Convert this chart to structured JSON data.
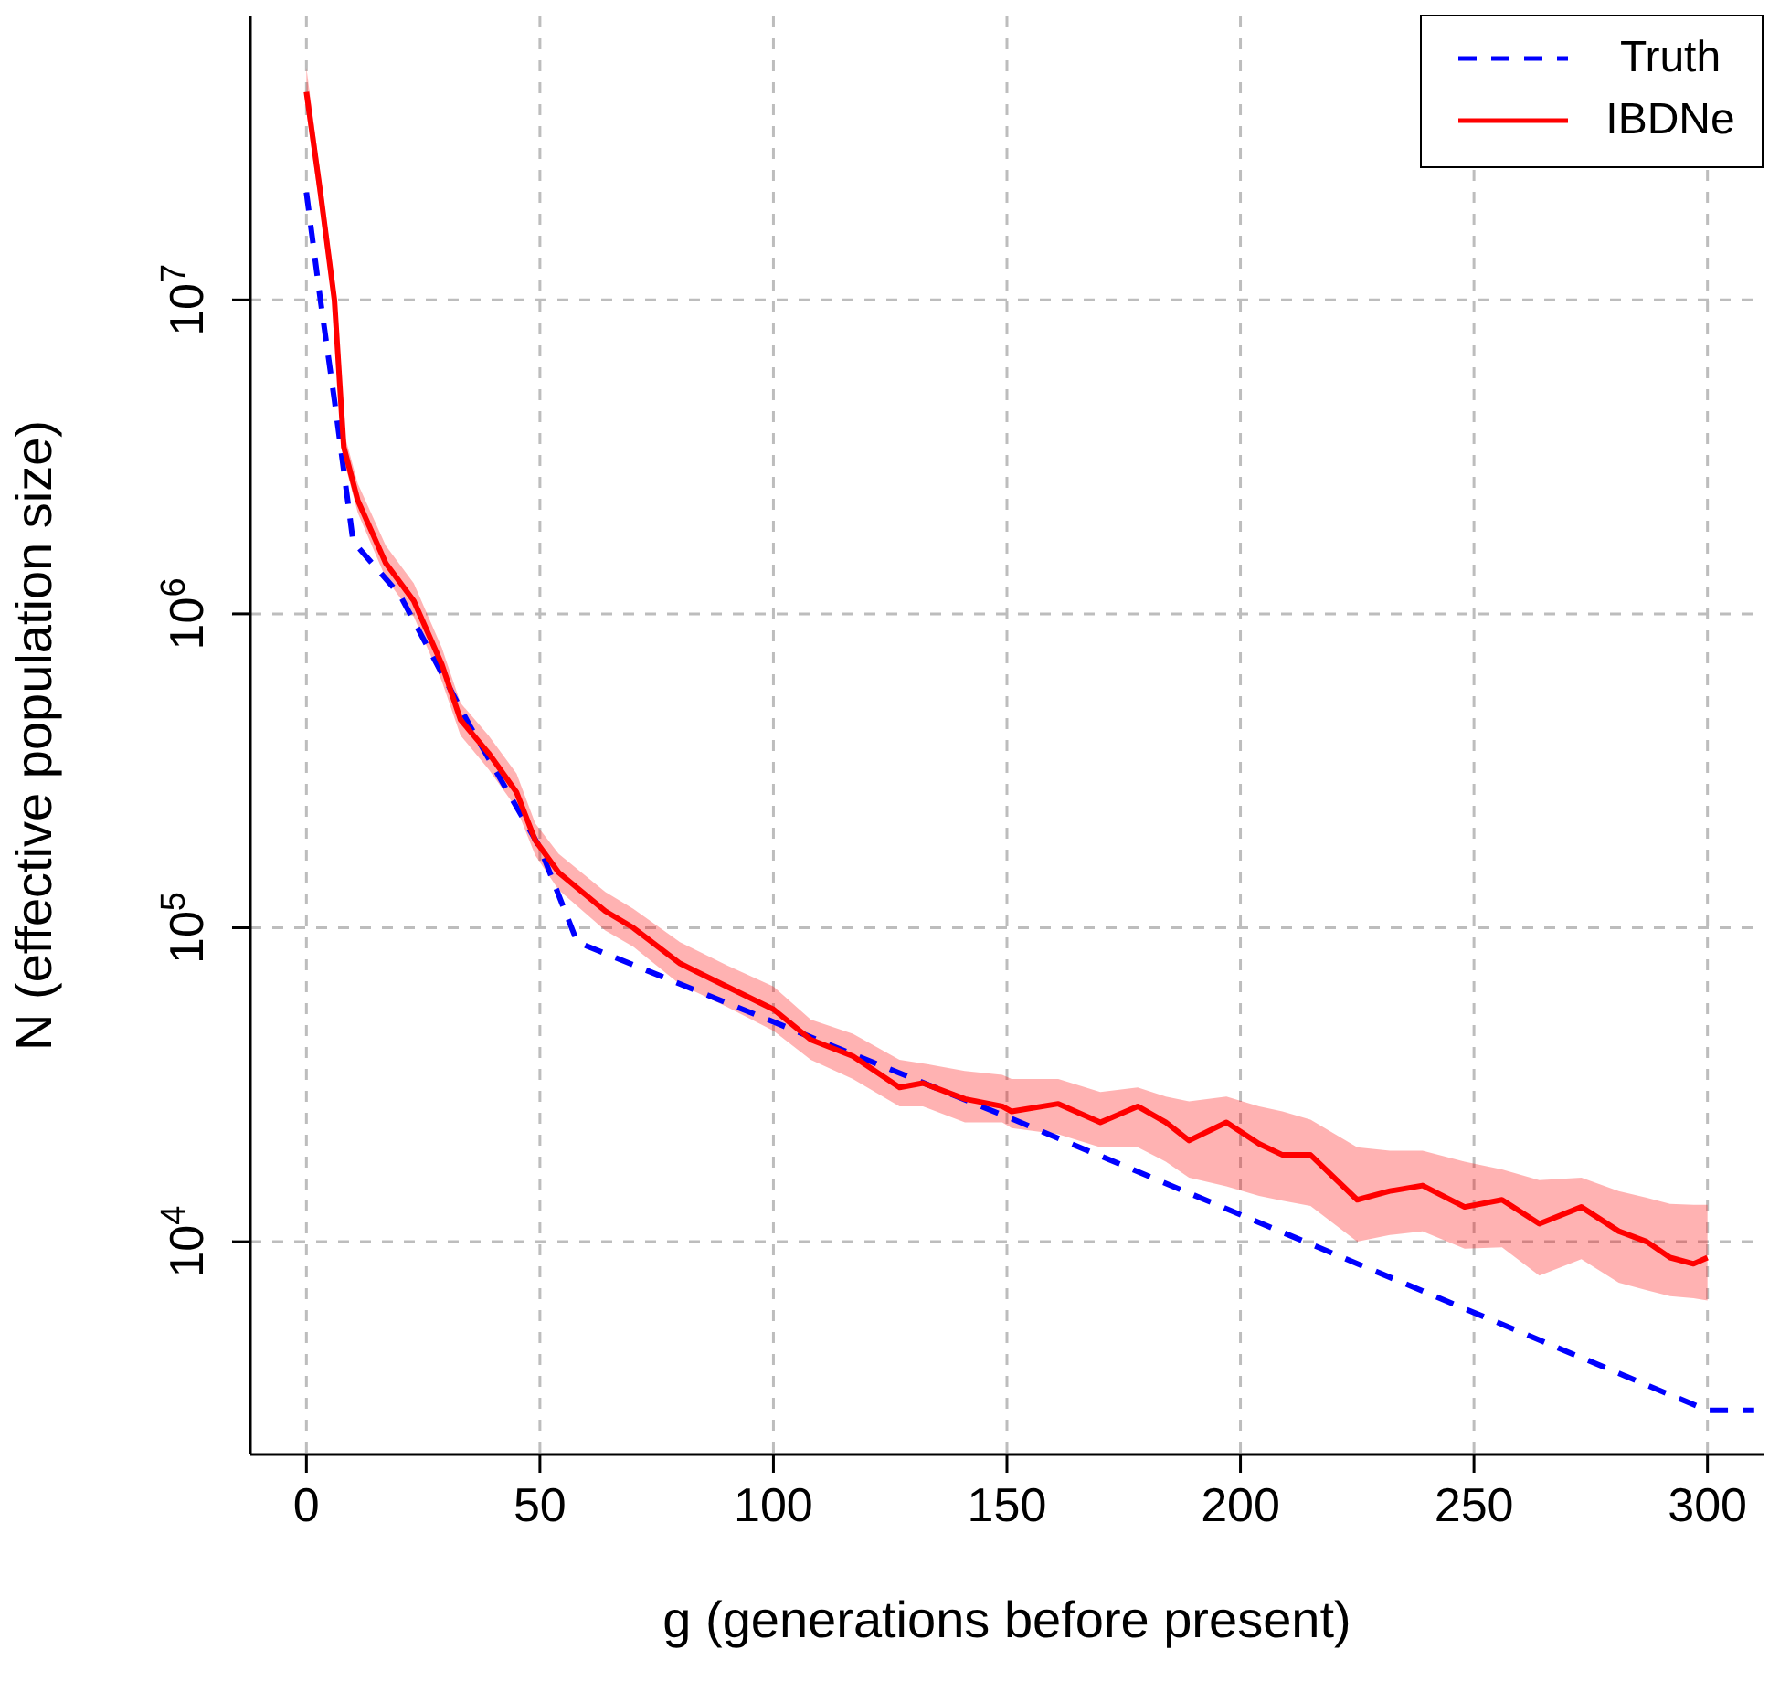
{
  "chart_data": {
    "type": "line",
    "xlabel": "g (generations before present)",
    "ylabel": "N (effective population size)",
    "xlim": [
      -12,
      312
    ],
    "xticks": [
      0,
      50,
      100,
      150,
      200,
      250,
      300
    ],
    "ylim": [
      2100,
      80000000
    ],
    "yticks": [
      {
        "value": 10000,
        "label": "10$^{4}$"
      },
      {
        "value": 100000,
        "label": "10$^{5}$"
      },
      {
        "value": 1000000,
        "label": "10$^{6}$"
      },
      {
        "value": 10000000,
        "label": "10$^{7}$"
      }
    ],
    "log": "y",
    "grid": true,
    "legend": "top right",
    "series": [
      {
        "name": "Truth",
        "color": "#0000ff",
        "line_style": "dashed",
        "x": [
          0,
          3,
          6,
          10,
          20,
          35,
          50,
          58,
          150,
          300,
          310
        ],
        "values": [
          22000000,
          10000000,
          4800000,
          1700000,
          1150000,
          440000,
          180000,
          90000,
          25000,
          2900,
          2900
        ]
      },
      {
        "name": "IBDNe",
        "color": "#ff0000",
        "line_style": "solid",
        "x": [
          0,
          3,
          6,
          8,
          11,
          17,
          23,
          29,
          33,
          39,
          45,
          49,
          54,
          64,
          70,
          80,
          90,
          100,
          108,
          117,
          127,
          132,
          141,
          149,
          151,
          161,
          170,
          178,
          184,
          189,
          197,
          204,
          209,
          215,
          225,
          232,
          239,
          248,
          256,
          264,
          273,
          281,
          287,
          292,
          297,
          300
        ],
        "values": [
          46000000,
          22000000,
          10000000,
          3400000,
          2300000,
          1450000,
          1100000,
          690000,
          460000,
          360000,
          270000,
          190000,
          150000,
          113000,
          100000,
          77000,
          65000,
          55000,
          44000,
          39000,
          31000,
          32000,
          28500,
          27000,
          26000,
          27500,
          24000,
          27000,
          24000,
          21000,
          24000,
          20500,
          18900,
          18900,
          13600,
          14500,
          15100,
          12900,
          13600,
          11400,
          12900,
          10800,
          10000,
          8900,
          8500,
          8900
        ],
        "lower": [
          40000000,
          19000000,
          9000000,
          3100000,
          2100000,
          1300000,
          980000,
          610000,
          410000,
          320000,
          240000,
          170000,
          132000,
          98000,
          87000,
          66000,
          56000,
          47000,
          38000,
          33000,
          27000,
          27000,
          24000,
          24000,
          23000,
          22000,
          20000,
          20000,
          18000,
          16000,
          15000,
          14000,
          13500,
          13000,
          10000,
          10500,
          10800,
          9500,
          9600,
          7800,
          8800,
          7400,
          7000,
          6700,
          6600,
          6500
        ],
        "upper": [
          55000000,
          25000000,
          11500000,
          3800000,
          2600000,
          1650000,
          1250000,
          780000,
          520000,
          410000,
          310000,
          215000,
          172000,
          130000,
          115000,
          90000,
          76000,
          65000,
          51000,
          46000,
          38000,
          37000,
          35000,
          34000,
          33000,
          33000,
          30000,
          31000,
          29000,
          28000,
          29000,
          27000,
          26000,
          24500,
          20000,
          19500,
          19500,
          18000,
          17000,
          15700,
          16000,
          14500,
          13800,
          13200,
          13100,
          13100
        ]
      }
    ]
  }
}
